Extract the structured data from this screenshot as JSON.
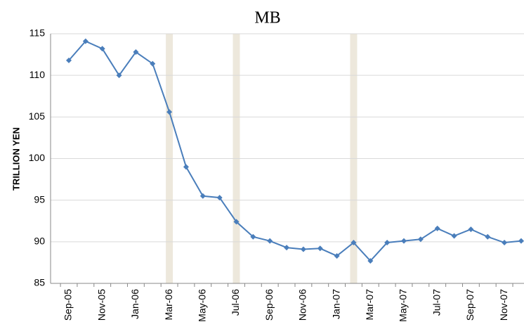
{
  "chart_data": {
    "type": "line",
    "title": "MB",
    "y_label": "TRILLION YEN",
    "categories": [
      "Sep-05",
      null,
      "Nov-05",
      null,
      "Jan-06",
      null,
      "Mar-06",
      null,
      "May-06",
      null,
      "Jul-06",
      null,
      "Sep-06",
      null,
      "Nov-06",
      null,
      "Jan-07",
      null,
      "Mar-07",
      null,
      "May-07",
      null,
      "Jul-07",
      null,
      "Sep-07",
      null,
      "Nov-07",
      null
    ],
    "series": [
      {
        "name": "MB",
        "color": "#4a7ebb",
        "values": [
          111.8,
          114.1,
          113.2,
          110.0,
          112.8,
          111.4,
          105.6,
          99.0,
          95.5,
          95.3,
          92.4,
          90.6,
          90.1,
          89.3,
          89.1,
          89.2,
          88.3,
          89.9,
          87.7,
          89.9,
          90.1,
          90.3,
          91.6,
          90.7,
          91.5,
          90.6,
          89.9,
          90.1
        ]
      }
    ],
    "shaded": [
      6,
      10,
      17
    ],
    "shade_color": "#ede8dc",
    "ylim": [
      85,
      115
    ],
    "yticks": [
      85,
      90,
      95,
      100,
      105,
      110,
      115
    ],
    "grid": true
  }
}
